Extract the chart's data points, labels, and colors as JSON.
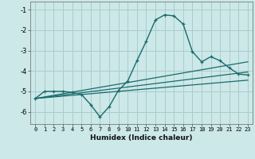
{
  "xlabel": "Humidex (Indice chaleur)",
  "ylabel": "",
  "bg_color": "#cce8e8",
  "grid_color": "#aacccc",
  "line_color": "#1a6b6b",
  "xlim": [
    -0.5,
    23.5
  ],
  "ylim": [
    -6.6,
    -0.6
  ],
  "yticks": [
    -6,
    -5,
    -4,
    -3,
    -2,
    -1
  ],
  "xticks": [
    0,
    1,
    2,
    3,
    4,
    5,
    6,
    7,
    8,
    9,
    10,
    11,
    12,
    13,
    14,
    15,
    16,
    17,
    18,
    19,
    20,
    21,
    22,
    23
  ],
  "main_line_x": [
    0,
    1,
    2,
    3,
    4,
    5,
    6,
    7,
    8,
    9,
    10,
    11,
    12,
    13,
    14,
    15,
    16,
    17,
    18,
    19,
    20,
    21,
    22,
    23
  ],
  "main_line_y": [
    -5.35,
    -5.0,
    -5.0,
    -5.0,
    -5.05,
    -5.15,
    -5.65,
    -6.25,
    -5.75,
    -4.95,
    -4.5,
    -3.5,
    -2.55,
    -1.5,
    -1.25,
    -1.3,
    -1.7,
    -3.05,
    -3.55,
    -3.3,
    -3.5,
    -3.85,
    -4.15,
    -4.2
  ],
  "line2_x": [
    0,
    23
  ],
  "line2_y": [
    -5.35,
    -3.55
  ],
  "line3_x": [
    0,
    23
  ],
  "line3_y": [
    -5.35,
    -4.05
  ],
  "line4_x": [
    0,
    23
  ],
  "line4_y": [
    -5.35,
    -4.45
  ]
}
